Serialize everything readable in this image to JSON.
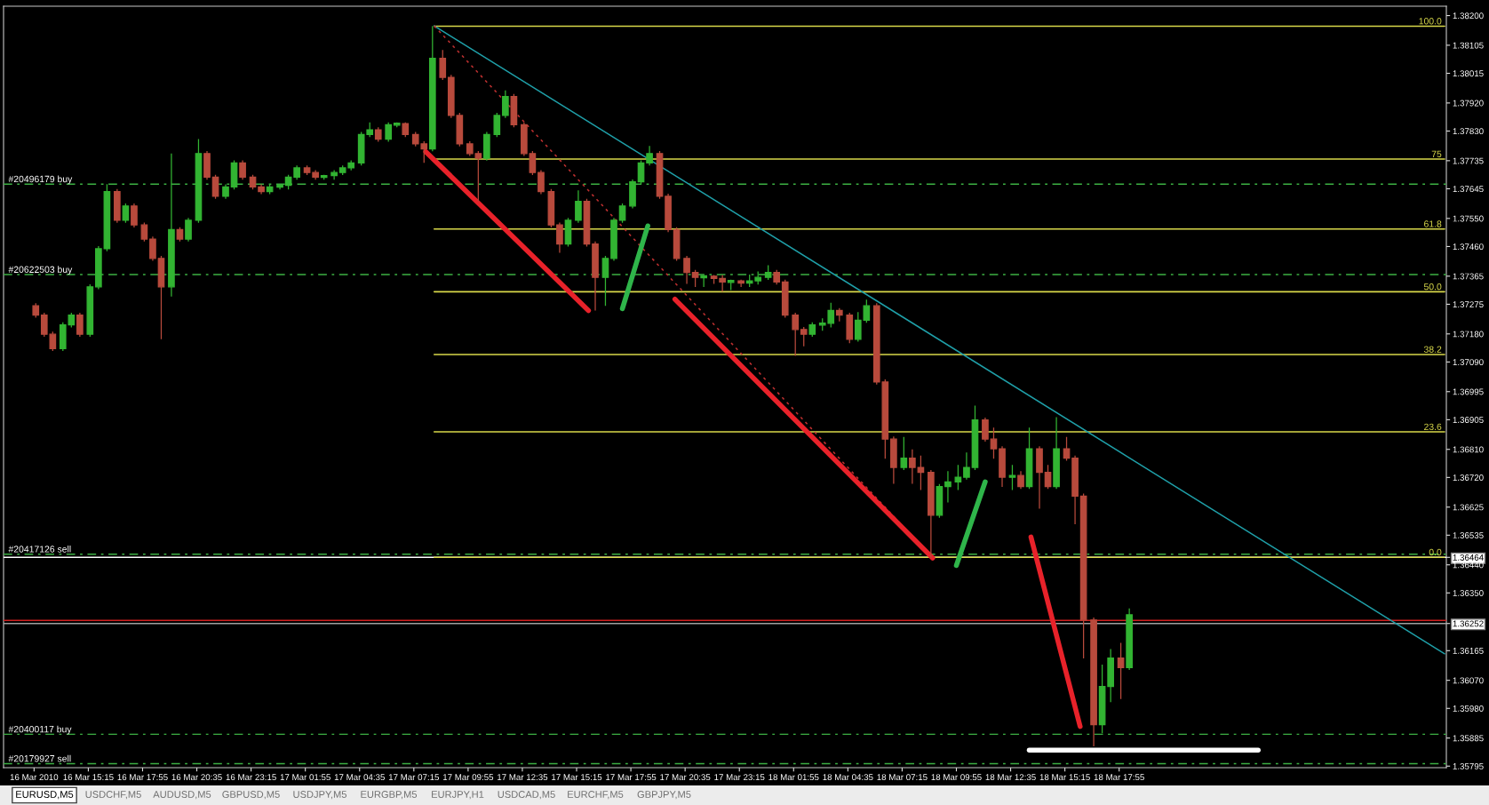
{
  "chart_data": {
    "type": "candlestick",
    "xlim": [
      "2010-03-16T11:05",
      "2010-03-19T10:00"
    ],
    "ylim": [
      1.3579,
      1.3823
    ],
    "xticks": [
      {
        "value": "2010-03-16T12:35",
        "label": "16 Mar 2010"
      },
      {
        "value": "2010-03-16T15:15",
        "label": "16 Mar 15:15"
      },
      {
        "value": "2010-03-16T17:55",
        "label": "16 Mar 17:55"
      },
      {
        "value": "2010-03-16T20:35",
        "label": "16 Mar 20:35"
      },
      {
        "value": "2010-03-16T23:15",
        "label": "16 Mar 23:15"
      },
      {
        "value": "2010-03-17T01:55",
        "label": "17 Mar 01:55"
      },
      {
        "value": "2010-03-17T04:35",
        "label": "17 Mar 04:35"
      },
      {
        "value": "2010-03-17T07:15",
        "label": "17 Mar 07:15"
      },
      {
        "value": "2010-03-17T09:55",
        "label": "17 Mar 09:55"
      },
      {
        "value": "2010-03-17T12:35",
        "label": "17 Mar 12:35"
      },
      {
        "value": "2010-03-17T15:15",
        "label": "17 Mar 15:15"
      },
      {
        "value": "2010-03-17T17:55",
        "label": "17 Mar 17:55"
      },
      {
        "value": "2010-03-17T20:35",
        "label": "17 Mar 20:35"
      },
      {
        "value": "2010-03-17T23:15",
        "label": "17 Mar 23:15"
      },
      {
        "value": "2010-03-18T01:55",
        "label": "18 Mar 01:55"
      },
      {
        "value": "2010-03-18T04:35",
        "label": "18 Mar 04:35"
      },
      {
        "value": "2010-03-18T07:15",
        "label": "18 Mar 07:15"
      },
      {
        "value": "2010-03-18T09:55",
        "label": "18 Mar 09:55"
      },
      {
        "value": "2010-03-18T12:35",
        "label": "18 Mar 12:35"
      },
      {
        "value": "2010-03-18T15:15",
        "label": "18 Mar 15:15"
      },
      {
        "value": "2010-03-18T17:55",
        "label": "18 Mar 17:55"
      }
    ],
    "yticks": [
      {
        "value": 1.382,
        "label": "1.38200"
      },
      {
        "value": 1.38105,
        "label": "1.38105"
      },
      {
        "value": 1.38015,
        "label": "1.38015"
      },
      {
        "value": 1.3792,
        "label": "1.37920"
      },
      {
        "value": 1.3783,
        "label": "1.37830"
      },
      {
        "value": 1.37735,
        "label": "1.37735"
      },
      {
        "value": 1.37645,
        "label": "1.37645"
      },
      {
        "value": 1.3755,
        "label": "1.37550"
      },
      {
        "value": 1.3746,
        "label": "1.37460"
      },
      {
        "value": 1.37365,
        "label": "1.37365"
      },
      {
        "value": 1.37275,
        "label": "1.37275"
      },
      {
        "value": 1.3718,
        "label": "1.37180"
      },
      {
        "value": 1.3709,
        "label": "1.37090"
      },
      {
        "value": 1.36995,
        "label": "1.36995"
      },
      {
        "value": 1.36905,
        "label": "1.36905"
      },
      {
        "value": 1.3681,
        "label": "1.36810"
      },
      {
        "value": 1.3672,
        "label": "1.36720"
      },
      {
        "value": 1.36625,
        "label": "1.36625"
      },
      {
        "value": 1.36535,
        "label": "1.36535"
      },
      {
        "value": 1.36464,
        "label": "1.36464"
      },
      {
        "value": 1.3644,
        "label": "1.36440"
      },
      {
        "value": 1.3635,
        "label": "1.36350"
      },
      {
        "value": 1.36252,
        "label": "1.36252"
      },
      {
        "value": 1.36165,
        "label": "1.36165"
      },
      {
        "value": 1.3607,
        "label": "1.36070"
      },
      {
        "value": 1.3598,
        "label": "1.35980"
      },
      {
        "value": 1.35885,
        "label": "1.35885"
      },
      {
        "value": 1.35795,
        "label": "1.35795"
      }
    ],
    "ref_lines": [
      {
        "axis": "y",
        "value": 1.3766,
        "label": "#20496179 buy",
        "color": "#3cb043",
        "line_style": "dashed"
      },
      {
        "axis": "y",
        "value": 1.3737,
        "label": "#20622503 buy",
        "color": "#3cb043",
        "line_style": "dashed"
      },
      {
        "axis": "y",
        "value": 1.36474,
        "label": "#20417126 sell",
        "color": "#3cb043",
        "line_style": "dashed"
      },
      {
        "axis": "y",
        "value": 1.35897,
        "label": "#20400117 buy",
        "color": "#3cb043",
        "line_style": "dashed"
      },
      {
        "axis": "y",
        "value": 1.35803,
        "label": "#20179927 sell",
        "color": "#3cb043",
        "line_style": "dashed"
      },
      {
        "axis": "y",
        "value": 1.36464,
        "label": null,
        "color": "#ffffff",
        "line_style": "solid"
      },
      {
        "axis": "y",
        "value": 1.36262,
        "label": null,
        "color": "#d02020",
        "line_style": "solid"
      },
      {
        "axis": "y",
        "value": 1.36252,
        "label": null,
        "color": "#a0a0a0",
        "line_style": "solid"
      }
    ],
    "series": [
      {
        "colors": [
          "#b84a3c",
          "#b84a3c",
          "#b84a3c",
          "#32b432",
          "#32b432",
          "#b84a3c",
          "#32b432",
          "#32b432",
          "#32b432",
          "#b84a3c",
          "#32b432",
          "#b84a3c",
          "#b84a3c",
          "#b84a3c",
          "#b84a3c",
          "#32b432",
          "#b84a3c",
          "#32b432",
          "#32b432",
          "#b84a3c",
          "#b84a3c",
          "#32b432",
          "#32b432",
          "#b84a3c",
          "#b84a3c",
          "#b84a3c",
          "#32b432",
          "#32b432",
          "#32b432",
          "#32b432",
          "#b84a3c",
          "#b84a3c",
          "#32b432",
          "#32b432",
          "#32b432",
          "#32b432",
          "#32b432",
          "#32b432",
          "#b84a3c",
          "#32b432",
          "#32b432",
          "#b84a3c",
          "#b84a3c",
          "#b84a3c",
          "#32b432",
          "#b84a3c",
          "#b84a3c",
          "#b84a3c",
          "#b84a3c",
          "#b84a3c",
          "#32b432",
          "#32b432",
          "#32b432",
          "#b84a3c",
          "#b84a3c",
          "#b84a3c",
          "#b84a3c",
          "#b84a3c",
          "#b84a3c",
          "#32b432",
          "#32b432",
          "#b84a3c",
          "#b84a3c",
          "#32b432",
          "#32b432",
          "#32b432",
          "#32b432",
          "#32b432",
          "#32b432",
          "#b84a3c",
          "#b84a3c",
          "#b84a3c",
          "#b84a3c",
          "#b84a3c",
          "#32b432",
          "#b84a3c",
          "#b84a3c",
          "#32b432",
          "#b84a3c",
          "#32b432",
          "#32b432",
          "#32b432",
          "#b84a3c",
          "#b84a3c",
          "#b84a3c",
          "#b84a3c",
          "#32b432",
          "#32b432",
          "#32b432",
          "#b84a3c",
          "#b84a3c",
          "#32b432",
          "#32b432",
          "#b84a3c",
          "#b84a3c",
          "#b84a3c",
          "#32b432",
          "#b84a3c",
          "#b84a3c",
          "#b84a3c",
          "#32b432",
          "#32b432",
          "#32b432",
          "#32b432",
          "#32b432",
          "#b84a3c",
          "#b84a3c",
          "#b84a3c",
          "#32b432",
          "#b84a3c",
          "#32b432",
          "#b84a3c",
          "#b84a3c",
          "#32b432",
          "#b84a3c",
          "#b84a3c",
          "#b84a3c",
          "#b84a3c",
          "#32b432",
          "#32b432",
          "#b84a3c",
          "#32b432"
        ],
        "x": [
          "2010-03-16T12:40",
          "2010-03-16T13:05",
          "2010-03-16T13:30",
          "2010-03-16T14:00",
          "2010-03-16T14:25",
          "2010-03-16T14:50",
          "2010-03-16T15:20",
          "2010-03-16T15:45",
          "2010-03-16T16:10",
          "2010-03-16T16:40",
          "2010-03-16T17:05",
          "2010-03-16T17:30",
          "2010-03-16T18:00",
          "2010-03-16T18:25",
          "2010-03-16T18:50",
          "2010-03-16T19:20",
          "2010-03-16T19:45",
          "2010-03-16T20:10",
          "2010-03-16T20:40",
          "2010-03-16T21:05",
          "2010-03-16T21:30",
          "2010-03-16T22:00",
          "2010-03-16T22:25",
          "2010-03-16T22:50",
          "2010-03-16T23:20",
          "2010-03-16T23:45",
          "2010-03-17T00:10",
          "2010-03-17T00:40",
          "2010-03-17T01:05",
          "2010-03-17T01:30",
          "2010-03-17T02:00",
          "2010-03-17T02:25",
          "2010-03-17T02:50",
          "2010-03-17T03:20",
          "2010-03-17T03:45",
          "2010-03-17T04:10",
          "2010-03-17T04:40",
          "2010-03-17T05:05",
          "2010-03-17T05:30",
          "2010-03-17T06:00",
          "2010-03-17T06:25",
          "2010-03-17T06:50",
          "2010-03-17T07:20",
          "2010-03-17T07:45",
          "2010-03-17T08:10",
          "2010-03-17T08:40",
          "2010-03-17T09:05",
          "2010-03-17T09:30",
          "2010-03-17T10:00",
          "2010-03-17T10:25",
          "2010-03-17T10:50",
          "2010-03-17T11:20",
          "2010-03-17T11:45",
          "2010-03-17T12:10",
          "2010-03-17T12:40",
          "2010-03-17T13:05",
          "2010-03-17T13:30",
          "2010-03-17T14:00",
          "2010-03-17T14:25",
          "2010-03-17T14:50",
          "2010-03-17T15:20",
          "2010-03-17T15:45",
          "2010-03-17T16:10",
          "2010-03-17T16:40",
          "2010-03-17T17:05",
          "2010-03-17T17:30",
          "2010-03-17T18:00",
          "2010-03-17T18:25",
          "2010-03-17T18:50",
          "2010-03-17T19:20",
          "2010-03-17T19:45",
          "2010-03-17T20:10",
          "2010-03-17T20:40",
          "2010-03-17T21:05",
          "2010-03-17T21:30",
          "2010-03-17T22:00",
          "2010-03-17T22:25",
          "2010-03-17T22:50",
          "2010-03-17T23:20",
          "2010-03-17T23:45",
          "2010-03-18T00:10",
          "2010-03-18T00:40",
          "2010-03-18T01:05",
          "2010-03-18T01:30",
          "2010-03-18T02:00",
          "2010-03-18T02:25",
          "2010-03-18T02:50",
          "2010-03-18T03:20",
          "2010-03-18T03:45",
          "2010-03-18T04:10",
          "2010-03-18T04:40",
          "2010-03-18T05:05",
          "2010-03-18T05:30",
          "2010-03-18T06:00",
          "2010-03-18T06:25",
          "2010-03-18T06:50",
          "2010-03-18T07:20",
          "2010-03-18T07:45",
          "2010-03-18T08:10",
          "2010-03-18T08:40",
          "2010-03-18T09:05",
          "2010-03-18T09:30",
          "2010-03-18T10:00",
          "2010-03-18T10:25",
          "2010-03-18T10:50",
          "2010-03-18T11:20",
          "2010-03-18T11:45",
          "2010-03-18T12:10",
          "2010-03-18T12:40",
          "2010-03-18T13:05",
          "2010-03-18T13:30",
          "2010-03-18T14:00",
          "2010-03-18T14:25",
          "2010-03-18T14:50",
          "2010-03-18T15:20",
          "2010-03-18T15:45",
          "2010-03-18T16:10",
          "2010-03-18T16:40",
          "2010-03-18T17:05",
          "2010-03-18T17:30",
          "2010-03-18T18:00",
          "2010-03-18T18:25"
        ],
        "ohlc": [
          [
            1.3727,
            1.37278,
            1.37232,
            1.3724
          ],
          [
            1.3724,
            1.37248,
            1.37171,
            1.37179
          ],
          [
            1.37179,
            1.37187,
            1.37125,
            1.37133
          ],
          [
            1.37133,
            1.37217,
            1.37125,
            1.37209
          ],
          [
            1.37209,
            1.37248,
            1.37201,
            1.3724
          ],
          [
            1.3724,
            1.37248,
            1.37171,
            1.37179
          ],
          [
            1.37179,
            1.37339,
            1.37171,
            1.37331
          ],
          [
            1.37331,
            1.37461,
            1.37323,
            1.37453
          ],
          [
            1.37453,
            1.3766,
            1.37445,
            1.37636
          ],
          [
            1.37636,
            1.37644,
            1.37536,
            1.37544
          ],
          [
            1.37544,
            1.37598,
            1.37536,
            1.3759
          ],
          [
            1.3759,
            1.37598,
            1.37521,
            1.37529
          ],
          [
            1.37529,
            1.37537,
            1.37476,
            1.37484
          ],
          [
            1.37484,
            1.37492,
            1.37414,
            1.37422
          ],
          [
            1.37422,
            1.3743,
            1.37163,
            1.37331
          ],
          [
            1.37331,
            1.37758,
            1.373,
            1.37514
          ],
          [
            1.37514,
            1.37522,
            1.37476,
            1.37484
          ],
          [
            1.37484,
            1.37552,
            1.37476,
            1.37544
          ],
          [
            1.37544,
            1.37804,
            1.37536,
            1.37758
          ],
          [
            1.37758,
            1.37766,
            1.37674,
            1.37682
          ],
          [
            1.37682,
            1.3769,
            1.37613,
            1.37621
          ],
          [
            1.37621,
            1.37659,
            1.37613,
            1.37651
          ],
          [
            1.37651,
            1.37736,
            1.37643,
            1.37728
          ],
          [
            1.37728,
            1.37736,
            1.37674,
            1.37682
          ],
          [
            1.37682,
            1.3769,
            1.37643,
            1.37651
          ],
          [
            1.37651,
            1.37659,
            1.37628,
            1.37636
          ],
          [
            1.37636,
            1.37659,
            1.37628,
            1.37651
          ],
          [
            1.37651,
            1.37659,
            1.37643,
            1.37656
          ],
          [
            1.37656,
            1.3769,
            1.37643,
            1.37682
          ],
          [
            1.37682,
            1.3772,
            1.37674,
            1.37712
          ],
          [
            1.37712,
            1.3772,
            1.37689,
            1.37697
          ],
          [
            1.37697,
            1.37705,
            1.37674,
            1.37682
          ],
          [
            1.37682,
            1.3769,
            1.37674,
            1.37687
          ],
          [
            1.37687,
            1.37705,
            1.37674,
            1.37697
          ],
          [
            1.37697,
            1.3772,
            1.37689,
            1.37712
          ],
          [
            1.37712,
            1.37736,
            1.37704,
            1.37728
          ],
          [
            1.37728,
            1.37827,
            1.3772,
            1.37819
          ],
          [
            1.37819,
            1.37858,
            1.37811,
            1.37834
          ],
          [
            1.37834,
            1.37842,
            1.37796,
            1.37804
          ],
          [
            1.37804,
            1.37858,
            1.37796,
            1.3785
          ],
          [
            1.3785,
            1.37858,
            1.37842,
            1.37854
          ],
          [
            1.37854,
            1.37858,
            1.37811,
            1.37819
          ],
          [
            1.37819,
            1.37827,
            1.37781,
            1.37789
          ],
          [
            1.37789,
            1.37797,
            1.37728,
            1.37773
          ],
          [
            1.37773,
            1.38167,
            1.37765,
            1.38063
          ],
          [
            1.38063,
            1.3809,
            1.37994,
            1.38002
          ],
          [
            1.38002,
            1.3801,
            1.37872,
            1.3788
          ],
          [
            1.3788,
            1.37888,
            1.37781,
            1.37789
          ],
          [
            1.37789,
            1.37797,
            1.3775,
            1.37758
          ],
          [
            1.37758,
            1.37766,
            1.37605,
            1.37743
          ],
          [
            1.37743,
            1.37827,
            1.37735,
            1.37819
          ],
          [
            1.37819,
            1.37888,
            1.37811,
            1.3788
          ],
          [
            1.3788,
            1.3796,
            1.37872,
            1.37941
          ],
          [
            1.37941,
            1.37949,
            1.37842,
            1.3785
          ],
          [
            1.3785,
            1.37858,
            1.3775,
            1.37758
          ],
          [
            1.37758,
            1.37766,
            1.37689,
            1.37697
          ],
          [
            1.37697,
            1.37705,
            1.37628,
            1.37636
          ],
          [
            1.37636,
            1.37644,
            1.37521,
            1.37529
          ],
          [
            1.37529,
            1.37537,
            1.3744,
            1.37468
          ],
          [
            1.37468,
            1.37552,
            1.3746,
            1.37544
          ],
          [
            1.37544,
            1.3764,
            1.37536,
            1.37605
          ],
          [
            1.37605,
            1.37613,
            1.3746,
            1.37468
          ],
          [
            1.37468,
            1.37476,
            1.37255,
            1.37361
          ],
          [
            1.37361,
            1.3743,
            1.3727,
            1.37422
          ],
          [
            1.37422,
            1.37552,
            1.37414,
            1.37544
          ],
          [
            1.37544,
            1.37598,
            1.37536,
            1.3759
          ],
          [
            1.3759,
            1.37675,
            1.37582,
            1.37667
          ],
          [
            1.37667,
            1.37736,
            1.37659,
            1.37728
          ],
          [
            1.37728,
            1.37782,
            1.3772,
            1.37758
          ],
          [
            1.37758,
            1.37766,
            1.37613,
            1.37621
          ],
          [
            1.37621,
            1.37629,
            1.37506,
            1.37514
          ],
          [
            1.37514,
            1.37522,
            1.37414,
            1.37422
          ],
          [
            1.37422,
            1.3743,
            1.3734,
            1.37377
          ],
          [
            1.37377,
            1.37385,
            1.3733,
            1.37361
          ],
          [
            1.37361,
            1.37369,
            1.3733,
            1.37365
          ],
          [
            1.37365,
            1.37369,
            1.3734,
            1.37358
          ],
          [
            1.37358,
            1.37369,
            1.37315,
            1.37346
          ],
          [
            1.37346,
            1.37354,
            1.3732,
            1.3735
          ],
          [
            1.3735,
            1.37354,
            1.3733,
            1.37343
          ],
          [
            1.37343,
            1.3737,
            1.3733,
            1.3735
          ],
          [
            1.3735,
            1.3738,
            1.37338,
            1.37361
          ],
          [
            1.37361,
            1.374,
            1.37353,
            1.37377
          ],
          [
            1.37377,
            1.37385,
            1.37338,
            1.37346
          ],
          [
            1.37346,
            1.37354,
            1.37232,
            1.3724
          ],
          [
            1.3724,
            1.37248,
            1.3711,
            1.37194
          ],
          [
            1.37194,
            1.37202,
            1.3714,
            1.37179
          ],
          [
            1.37179,
            1.37217,
            1.37171,
            1.37209
          ],
          [
            1.37209,
            1.3723,
            1.3719,
            1.37214
          ],
          [
            1.37214,
            1.3728,
            1.37201,
            1.37255
          ],
          [
            1.37255,
            1.37263,
            1.3722,
            1.3724
          ],
          [
            1.3724,
            1.37248,
            1.3715,
            1.37163
          ],
          [
            1.37163,
            1.3725,
            1.37155,
            1.37224
          ],
          [
            1.37224,
            1.3729,
            1.37216,
            1.3727
          ],
          [
            1.3727,
            1.37278,
            1.37018,
            1.37026
          ],
          [
            1.37026,
            1.37034,
            1.3678,
            1.36843
          ],
          [
            1.36843,
            1.36851,
            1.367,
            1.36752
          ],
          [
            1.36752,
            1.3685,
            1.36744,
            1.36782
          ],
          [
            1.36782,
            1.3681,
            1.367,
            1.36752
          ],
          [
            1.36752,
            1.3679,
            1.3668,
            1.36736
          ],
          [
            1.36736,
            1.36744,
            1.36462,
            1.36599
          ],
          [
            1.36599,
            1.36699,
            1.36591,
            1.36691
          ],
          [
            1.36691,
            1.3674,
            1.3664,
            1.36706
          ],
          [
            1.36706,
            1.3676,
            1.3668,
            1.36721
          ],
          [
            1.36721,
            1.368,
            1.36713,
            1.36752
          ],
          [
            1.36752,
            1.3695,
            1.36744,
            1.36904
          ],
          [
            1.36904,
            1.36912,
            1.36835,
            1.36843
          ],
          [
            1.36843,
            1.3688,
            1.3678,
            1.36812
          ],
          [
            1.36812,
            1.3682,
            1.3669,
            1.36721
          ],
          [
            1.36721,
            1.3676,
            1.3668,
            1.36726
          ],
          [
            1.36726,
            1.3674,
            1.36683,
            1.36691
          ],
          [
            1.36691,
            1.3688,
            1.36683,
            1.36812
          ],
          [
            1.36812,
            1.3682,
            1.3662,
            1.36736
          ],
          [
            1.36736,
            1.3676,
            1.36683,
            1.36691
          ],
          [
            1.36691,
            1.36913,
            1.36683,
            1.36812
          ],
          [
            1.36812,
            1.3685,
            1.36774,
            1.36782
          ],
          [
            1.36782,
            1.3679,
            1.3657,
            1.3666
          ],
          [
            1.3666,
            1.36668,
            1.3614,
            1.36263
          ],
          [
            1.36263,
            1.36271,
            1.35858,
            1.35928
          ],
          [
            1.35928,
            1.3612,
            1.359,
            1.3605
          ],
          [
            1.3605,
            1.3617,
            1.36,
            1.36141
          ],
          [
            1.36141,
            1.3619,
            1.3601,
            1.36111
          ],
          [
            1.36111,
            1.363,
            1.36103,
            1.3628
          ]
        ]
      },
      {
        "type": "line",
        "name": "100.0",
        "color": "#d8d84a",
        "x": [
          "2010-03-17T08:15",
          "2010-03-19T09:55"
        ],
        "values": [
          1.38166,
          1.38166
        ]
      },
      {
        "type": "line",
        "name": "75",
        "color": "#d8d84a",
        "x": [
          "2010-03-17T08:15",
          "2010-03-19T09:55"
        ],
        "values": [
          1.3774,
          1.3774
        ]
      },
      {
        "type": "line",
        "name": "61.8",
        "color": "#d8d84a",
        "x": [
          "2010-03-17T08:15",
          "2010-03-19T09:55"
        ],
        "values": [
          1.37516,
          1.37516
        ]
      },
      {
        "type": "line",
        "name": "50.0",
        "color": "#d8d84a",
        "x": [
          "2010-03-17T08:15",
          "2010-03-19T09:55"
        ],
        "values": [
          1.37315,
          1.37315
        ]
      },
      {
        "type": "line",
        "name": "38.2",
        "color": "#d8d84a",
        "x": [
          "2010-03-17T08:15",
          "2010-03-19T09:55"
        ],
        "values": [
          1.37114,
          1.37114
        ]
      },
      {
        "type": "line",
        "name": "23.6",
        "color": "#d8d84a",
        "x": [
          "2010-03-17T08:15",
          "2010-03-19T09:55"
        ],
        "values": [
          1.36866,
          1.36866
        ]
      },
      {
        "type": "line",
        "name": "0.0",
        "color": "#d8d84a",
        "x": [
          "2010-03-17T08:15",
          "2010-03-19T09:55"
        ],
        "values": [
          1.36464,
          1.36464
        ]
      },
      {
        "type": "line",
        "color": "#1f9fa8",
        "x": [
          "2010-03-17T08:15",
          "2010-03-19T09:55"
        ],
        "values": [
          1.38167,
          1.36155
        ]
      },
      {
        "type": "line",
        "color": "#c03030",
        "line_style": "dotted",
        "x": [
          "2010-03-17T08:15",
          "2010-03-18T08:45"
        ],
        "values": [
          1.38167,
          1.36462
        ]
      },
      {
        "type": "line",
        "color": "#e8222a",
        "x": [
          "2010-03-17T07:50",
          "2010-03-17T15:50"
        ],
        "values": [
          1.37764,
          1.37255
        ]
      },
      {
        "type": "line",
        "color": "#e8222a",
        "x": [
          "2010-03-17T20:05",
          "2010-03-18T08:45"
        ],
        "values": [
          1.37291,
          1.36462
        ]
      },
      {
        "type": "line",
        "color": "#e8222a",
        "x": [
          "2010-03-18T13:35",
          "2010-03-18T16:00"
        ],
        "values": [
          1.36529,
          1.35922
        ]
      },
      {
        "type": "line",
        "color": "#2fb54a",
        "x": [
          "2010-03-17T17:30",
          "2010-03-17T18:45"
        ],
        "values": [
          1.37261,
          1.37526
        ]
      },
      {
        "type": "line",
        "color": "#2fb54a",
        "x": [
          "2010-03-18T09:55",
          "2010-03-18T11:20"
        ],
        "values": [
          1.36438,
          1.36706
        ]
      },
      {
        "type": "line",
        "color": "#ffffff",
        "x": [
          "2010-03-18T13:30",
          "2010-03-19T00:45"
        ],
        "values": [
          1.35846,
          1.35846
        ]
      }
    ],
    "annotations": [
      "EURUSD,M5",
      "USDCHF,M5",
      "AUDUSD,M5",
      "GBPUSD,M5",
      "USDJPY,M5",
      "EURGBP,M5",
      "EURJPY,H1",
      "USDCAD,M5",
      "EURCHF,M5",
      "GBPJPY,M5"
    ]
  }
}
